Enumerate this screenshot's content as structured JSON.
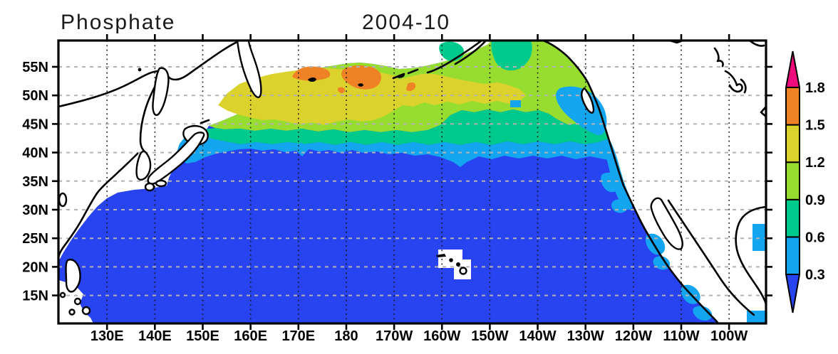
{
  "title": {
    "variable": "Phosphate",
    "date": "2004-10"
  },
  "axes": {
    "x": {
      "tick_labels": [
        "130E",
        "140E",
        "150E",
        "160E",
        "170E",
        "180",
        "170W",
        "160W",
        "150W",
        "140W",
        "130W",
        "120W",
        "110W",
        "100W"
      ]
    },
    "y": {
      "tick_labels": [
        "55N",
        "50N",
        "45N",
        "40N",
        "35N",
        "30N",
        "25N",
        "20N",
        "15N"
      ]
    }
  },
  "colorbar": {
    "tick_labels": [
      "1.8",
      "1.5",
      "1.2",
      "0.9",
      "0.6",
      "0.3"
    ],
    "levels": [
      0.3,
      0.6,
      0.9,
      1.2,
      1.5,
      1.8
    ],
    "segment_colors_low_to_high": [
      "#14A5F0",
      "#00C98C",
      "#97DD30",
      "#DCD22D",
      "#EF8226"
    ],
    "under_color": "#2843F0",
    "over_color": "#EE0C7C"
  },
  "chart_data": {
    "type": "heatmap",
    "title": "Phosphate",
    "subtitle": "2004-10",
    "projection": "lat-lon map of the North Pacific",
    "lon_range": [
      "120E",
      "92W"
    ],
    "lat_range": [
      "10N",
      "60N"
    ],
    "x_ticks": [
      "130E",
      "140E",
      "150E",
      "160E",
      "170E",
      "180",
      "170W",
      "160W",
      "150W",
      "140W",
      "130W",
      "120W",
      "110W",
      "100W"
    ],
    "y_ticks": [
      "55N",
      "50N",
      "45N",
      "40N",
      "35N",
      "30N",
      "25N",
      "20N",
      "15N"
    ],
    "contour_levels": [
      0.3,
      0.6,
      0.9,
      1.2,
      1.5,
      1.8
    ],
    "legend_position": "right colorbar with triangular over/under arrows",
    "grid": "dotted graticule every 10 deg lon, dashed gray every 5 deg lat",
    "sample_lons_deg_east": [
      125,
      135,
      145,
      155,
      165,
      175,
      185,
      195,
      205,
      215,
      225,
      235,
      245,
      255,
      265
    ],
    "sample_lats_deg_north": [
      57.5,
      52.5,
      47.5,
      42.5,
      37.5,
      32.5,
      27.5,
      22.5,
      17.5,
      12.5
    ],
    "values": [
      [
        null,
        null,
        null,
        null,
        null,
        null,
        null,
        null,
        null,
        1.0,
        0.9,
        null,
        null,
        null,
        null
      ],
      [
        null,
        null,
        null,
        1.2,
        1.4,
        1.6,
        1.45,
        1.3,
        1.15,
        1.0,
        0.95,
        null,
        null,
        null,
        null
      ],
      [
        null,
        null,
        null,
        1.2,
        1.3,
        1.3,
        1.3,
        1.25,
        1.1,
        0.9,
        0.7,
        0.45,
        null,
        null,
        null
      ],
      [
        null,
        null,
        0.6,
        0.8,
        0.8,
        0.75,
        0.7,
        0.7,
        0.7,
        0.65,
        0.6,
        0.45,
        null,
        null,
        null
      ],
      [
        null,
        null,
        0.2,
        0.15,
        0.15,
        0.15,
        0.15,
        0.15,
        0.15,
        0.15,
        0.2,
        0.3,
        null,
        null,
        null
      ],
      [
        null,
        0.2,
        0.15,
        0.15,
        0.15,
        0.15,
        0.15,
        0.15,
        0.15,
        0.15,
        0.15,
        0.2,
        null,
        null,
        null
      ],
      [
        0.25,
        0.15,
        0.15,
        0.15,
        0.15,
        0.15,
        0.15,
        0.15,
        0.15,
        0.15,
        0.15,
        0.2,
        0.2,
        null,
        0.45
      ],
      [
        0.2,
        0.15,
        0.15,
        0.15,
        0.15,
        0.15,
        0.15,
        0.15,
        null,
        0.15,
        0.15,
        0.2,
        0.45,
        null,
        null
      ],
      [
        0.2,
        0.15,
        0.15,
        0.15,
        0.15,
        0.15,
        0.15,
        0.15,
        0.15,
        0.15,
        0.15,
        0.2,
        0.2,
        0.45,
        null
      ],
      [
        null,
        0.15,
        0.15,
        0.15,
        0.15,
        0.15,
        0.15,
        0.15,
        0.15,
        0.15,
        0.15,
        0.15,
        0.2,
        0.4,
        0.45
      ]
    ],
    "notes": "Values are bin-midpoint estimates read from the colour fill; null = land / no data. Maximum (orange, 1.5-1.8) near 170E-178W at 52-56N; yellow 1.2-1.5 band across subarctic NW Pacific 45-54N; green/teal 0.6-1.2 in Gulf of Alaska; light blue 0.3-0.6 narrow band near 40-42N and along the American coast; dark blue <0.3 over the subtropical gyre south of 40N; small 0.3-0.6 patch in the Gulf of Mexico."
  }
}
